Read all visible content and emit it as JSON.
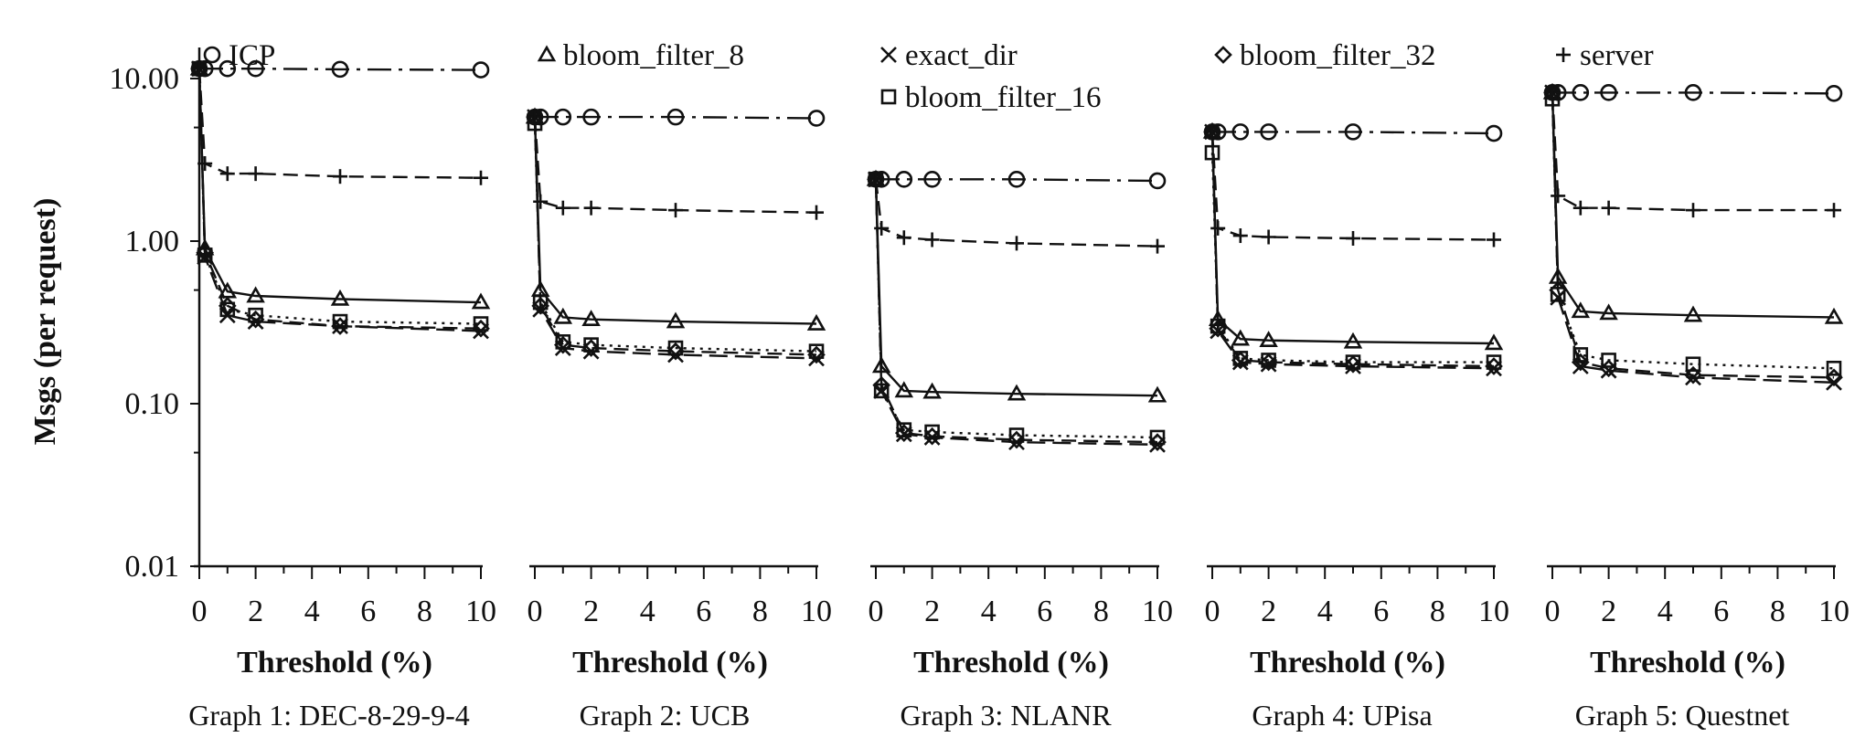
{
  "chart_data": {
    "type": "line",
    "y_scale": "log",
    "ylabel": "Msgs (per request)",
    "y_ticks": [
      "10.00",
      "1.00",
      "0.10",
      "0.01"
    ],
    "ylim": [
      0.01,
      14
    ],
    "xlim": [
      0,
      10
    ],
    "x_ticks": [
      "0",
      "2",
      "4",
      "6",
      "8",
      "10"
    ],
    "grid": false,
    "legend": [
      {
        "label": "ICP",
        "marker": "circle",
        "dash": "dashdot"
      },
      {
        "label": "bloom_filter_8",
        "marker": "triangle",
        "dash": "solid"
      },
      {
        "label": "exact_dir",
        "marker": "x",
        "dash": "longdash"
      },
      {
        "label": "bloom_filter_16",
        "marker": "square",
        "dash": "dotted"
      },
      {
        "label": "bloom_filter_32",
        "marker": "diamond",
        "dash": "dashed"
      },
      {
        "label": "server",
        "marker": "plus",
        "dash": "dashed"
      }
    ],
    "panels": [
      {
        "xlabel": "Threshold (%)",
        "caption": "Graph 1: DEC-8-29-9-4",
        "series": [
          {
            "name": "ICP",
            "x": [
              0,
              0.2,
              1,
              2,
              5,
              10
            ],
            "y": [
              11.5,
              11.5,
              11.5,
              11.5,
              11.4,
              11.3
            ]
          },
          {
            "name": "bloom_filter_8",
            "x": [
              0,
              0.2,
              1,
              2,
              5,
              10
            ],
            "y": [
              11.5,
              0.9,
              0.49,
              0.46,
              0.44,
              0.42
            ]
          },
          {
            "name": "exact_dir",
            "x": [
              0,
              0.2,
              1,
              2,
              5,
              10
            ],
            "y": [
              11.5,
              0.8,
              0.35,
              0.32,
              0.3,
              0.28
            ]
          },
          {
            "name": "bloom_filter_16",
            "x": [
              0,
              0.2,
              1,
              2,
              5,
              10
            ],
            "y": [
              11.5,
              0.82,
              0.38,
              0.35,
              0.32,
              0.31
            ]
          },
          {
            "name": "bloom_filter_32",
            "x": [
              0,
              0.2,
              1,
              2,
              5,
              10
            ],
            "y": [
              11.5,
              0.85,
              0.4,
              0.33,
              0.3,
              0.29
            ]
          },
          {
            "name": "server",
            "x": [
              0,
              0.2,
              1,
              2,
              5,
              10
            ],
            "y": [
              11.5,
              3.0,
              2.6,
              2.6,
              2.5,
              2.45
            ]
          }
        ]
      },
      {
        "xlabel": "Threshold (%)",
        "caption": "Graph 2: UCB",
        "series": [
          {
            "name": "ICP",
            "x": [
              0,
              0.2,
              1,
              2,
              5,
              10
            ],
            "y": [
              5.8,
              5.8,
              5.8,
              5.8,
              5.8,
              5.7
            ]
          },
          {
            "name": "bloom_filter_8",
            "x": [
              0,
              0.2,
              1,
              2,
              5,
              10
            ],
            "y": [
              5.8,
              0.5,
              0.34,
              0.33,
              0.32,
              0.31
            ]
          },
          {
            "name": "exact_dir",
            "x": [
              0,
              0.2,
              1,
              2,
              5,
              10
            ],
            "y": [
              5.8,
              0.38,
              0.22,
              0.21,
              0.2,
              0.19
            ]
          },
          {
            "name": "bloom_filter_16",
            "x": [
              0,
              0.2,
              1,
              2,
              5,
              10
            ],
            "y": [
              5.3,
              0.42,
              0.24,
              0.23,
              0.22,
              0.21
            ]
          },
          {
            "name": "bloom_filter_32",
            "x": [
              0,
              0.2,
              1,
              2,
              5,
              10
            ],
            "y": [
              5.8,
              0.4,
              0.23,
              0.22,
              0.21,
              0.2
            ]
          },
          {
            "name": "server",
            "x": [
              0,
              0.2,
              1,
              2,
              5,
              10
            ],
            "y": [
              5.8,
              1.75,
              1.6,
              1.6,
              1.55,
              1.5
            ]
          }
        ]
      },
      {
        "xlabel": "Threshold (%)",
        "caption": "Graph 3: NLANR",
        "series": [
          {
            "name": "ICP",
            "x": [
              0,
              0.2,
              1,
              2,
              5,
              10
            ],
            "y": [
              2.4,
              2.4,
              2.4,
              2.4,
              2.4,
              2.35
            ]
          },
          {
            "name": "bloom_filter_8",
            "x": [
              0,
              0.2,
              1,
              2,
              5,
              10
            ],
            "y": [
              2.4,
              0.17,
              0.12,
              0.118,
              0.115,
              0.112
            ]
          },
          {
            "name": "exact_dir",
            "x": [
              0,
              0.2,
              1,
              2,
              5,
              10
            ],
            "y": [
              2.4,
              0.12,
              0.065,
              0.062,
              0.058,
              0.056
            ]
          },
          {
            "name": "bloom_filter_16",
            "x": [
              0,
              0.2,
              1,
              2,
              5,
              10
            ],
            "y": [
              2.4,
              0.12,
              0.069,
              0.067,
              0.064,
              0.062
            ]
          },
          {
            "name": "bloom_filter_32",
            "x": [
              0,
              0.2,
              1,
              2,
              5,
              10
            ],
            "y": [
              2.4,
              0.13,
              0.066,
              0.063,
              0.06,
              0.058
            ]
          },
          {
            "name": "server",
            "x": [
              0,
              0.2,
              1,
              2,
              5,
              10
            ],
            "y": [
              2.4,
              1.2,
              1.05,
              1.02,
              0.97,
              0.93
            ]
          }
        ]
      },
      {
        "xlabel": "Threshold (%)",
        "caption": "Graph 4: UPisa",
        "series": [
          {
            "name": "ICP",
            "x": [
              0,
              0.2,
              1,
              2,
              5,
              10
            ],
            "y": [
              4.7,
              4.7,
              4.7,
              4.7,
              4.7,
              4.6
            ]
          },
          {
            "name": "bloom_filter_8",
            "x": [
              0,
              0.2,
              1,
              2,
              5,
              10
            ],
            "y": [
              4.7,
              0.33,
              0.25,
              0.245,
              0.24,
              0.235
            ]
          },
          {
            "name": "exact_dir",
            "x": [
              0,
              0.2,
              1,
              2,
              5,
              10
            ],
            "y": [
              4.7,
              0.28,
              0.18,
              0.175,
              0.17,
              0.165
            ]
          },
          {
            "name": "bloom_filter_16",
            "x": [
              0,
              0.2,
              1,
              2,
              5,
              10
            ],
            "y": [
              3.5,
              0.3,
              0.19,
              0.185,
              0.18,
              0.18
            ]
          },
          {
            "name": "bloom_filter_32",
            "x": [
              0,
              0.2,
              1,
              2,
              5,
              10
            ],
            "y": [
              4.7,
              0.29,
              0.185,
              0.18,
              0.175,
              0.17
            ]
          },
          {
            "name": "server",
            "x": [
              0,
              0.2,
              1,
              2,
              5,
              10
            ],
            "y": [
              4.7,
              1.2,
              1.08,
              1.06,
              1.04,
              1.02
            ]
          }
        ]
      },
      {
        "xlabel": "Threshold (%)",
        "caption": "Graph 5: Questnet",
        "series": [
          {
            "name": "ICP",
            "x": [
              0,
              0.2,
              1,
              2,
              5,
              10
            ],
            "y": [
              8.2,
              8.2,
              8.2,
              8.2,
              8.2,
              8.1
            ]
          },
          {
            "name": "bloom_filter_8",
            "x": [
              0,
              0.2,
              1,
              2,
              5,
              10
            ],
            "y": [
              8.2,
              0.6,
              0.37,
              0.36,
              0.35,
              0.34
            ]
          },
          {
            "name": "exact_dir",
            "x": [
              0,
              0.2,
              1,
              2,
              5,
              10
            ],
            "y": [
              8.2,
              0.45,
              0.17,
              0.16,
              0.145,
              0.135
            ]
          },
          {
            "name": "bloom_filter_16",
            "x": [
              0,
              0.2,
              1,
              2,
              5,
              10
            ],
            "y": [
              7.5,
              0.47,
              0.2,
              0.185,
              0.175,
              0.165
            ]
          },
          {
            "name": "bloom_filter_32",
            "x": [
              0,
              0.2,
              1,
              2,
              5,
              10
            ],
            "y": [
              8.2,
              0.5,
              0.18,
              0.165,
              0.15,
              0.145
            ]
          },
          {
            "name": "server",
            "x": [
              0,
              0.2,
              1,
              2,
              5,
              10
            ],
            "y": [
              8.2,
              1.9,
              1.6,
              1.6,
              1.55,
              1.55
            ]
          }
        ]
      }
    ]
  }
}
